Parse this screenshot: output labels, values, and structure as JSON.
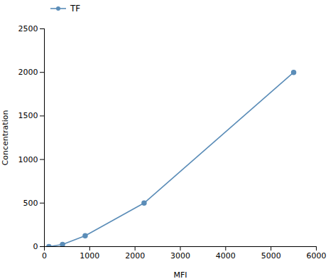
{
  "chart_data": {
    "type": "line",
    "x": [
      100,
      400,
      900,
      2200,
      5500
    ],
    "series": [
      {
        "name": "TF",
        "color": "#5B8DB8",
        "marker": "circle",
        "values": [
          0,
          25,
          125,
          500,
          2000
        ]
      }
    ],
    "xlabel": "MFI",
    "ylabel": "Concentration",
    "xlim": [
      0,
      6000
    ],
    "ylim": [
      0,
      2500
    ],
    "xticks": [
      0,
      1000,
      2000,
      3000,
      4000,
      5000,
      6000
    ],
    "yticks": [
      0,
      500,
      1000,
      1500,
      2000,
      2500
    ],
    "grid": false,
    "legend": "upper left"
  }
}
